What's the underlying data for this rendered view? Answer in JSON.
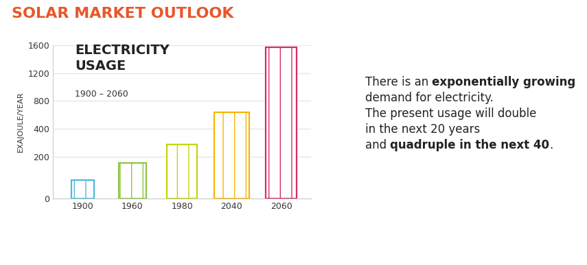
{
  "header": "SOLAR MARKET OUTLOOK",
  "chart_data": {
    "type": "bar",
    "title": "ELECTRICITY\nUSAGE",
    "subtitle": "1900 – 2060",
    "y_label": "EXAJOULE/YEAR",
    "categories": [
      "1900",
      "1960",
      "1980",
      "2040",
      "2060"
    ],
    "values": [
      90,
      170,
      290,
      640,
      1570
    ],
    "colors": [
      "#4fb8d8",
      "#8cc63f",
      "#c3d600",
      "#f7b500",
      "#d62a6a"
    ],
    "ylim": [
      0,
      1600
    ],
    "yticks": [
      0,
      200,
      400,
      800,
      1200,
      1600
    ],
    "grid": true
  },
  "note": [
    [
      {
        "text": "There is an ",
        "emphasis": false
      },
      {
        "text": "exponentially growing",
        "emphasis": true
      }
    ],
    [
      {
        "text": "demand for electricity.",
        "emphasis": false
      }
    ],
    [
      {
        "text": "The present usage will double",
        "emphasis": false
      }
    ],
    [
      {
        "text": "in the next 20 years",
        "emphasis": false
      }
    ],
    [
      {
        "text": "and ",
        "emphasis": false
      },
      {
        "text": "quadruple in the next 40",
        "emphasis": true
      },
      {
        "text": ".",
        "emphasis": false
      }
    ]
  ]
}
